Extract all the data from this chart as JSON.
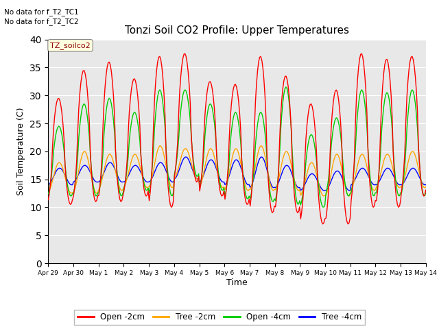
{
  "title": "Tonzi Soil CO2 Profile: Upper Temperatures",
  "xlabel": "Time",
  "ylabel": "Soil Temperature (C)",
  "annotations": [
    "No data for f_T2_TC1",
    "No data for f_T2_TC2"
  ],
  "box_label": "TZ_soilco2",
  "ylim": [
    0,
    40
  ],
  "yticks": [
    0,
    5,
    10,
    15,
    20,
    25,
    30,
    35,
    40
  ],
  "colors": {
    "open_2cm": "#FF0000",
    "tree_2cm": "#FFA500",
    "open_4cm": "#00CC00",
    "tree_4cm": "#0000FF"
  },
  "legend": [
    "Open -2cm",
    "Tree -2cm",
    "Open -4cm",
    "Tree -4cm"
  ],
  "bg_color": "#E8E8E8",
  "fig_color": "#FFFFFF",
  "x_tick_labels": [
    "Apr 29",
    "Apr 30",
    "May 1",
    "May 2",
    "May 3",
    "May 4",
    "May 5",
    "May 6",
    "May 7",
    "May 8",
    "May 9",
    "May 10",
    "May 11",
    "May 12",
    "May 13",
    "May 14"
  ],
  "red_peaks": [
    29.5,
    34.5,
    36.0,
    33.0,
    37.0,
    37.5,
    32.5,
    32.0,
    37.0,
    33.5,
    28.5,
    31.0,
    37.5,
    36.5,
    37.0
  ],
  "red_troughs": [
    10.5,
    11.0,
    11.0,
    12.0,
    10.0,
    14.5,
    12.0,
    10.5,
    9.0,
    9.0,
    7.0,
    7.0,
    10.0,
    10.0,
    12.0
  ],
  "green_peaks": [
    24.5,
    28.5,
    29.5,
    27.0,
    31.0,
    31.0,
    28.5,
    27.0,
    27.0,
    31.5,
    23.0,
    26.0,
    31.0,
    30.5,
    31.0
  ],
  "green_troughs": [
    12.0,
    12.0,
    12.0,
    13.0,
    12.0,
    15.5,
    13.0,
    11.5,
    11.0,
    10.5,
    10.0,
    12.0,
    12.0,
    12.0,
    12.0
  ],
  "orange_peaks": [
    18.0,
    20.0,
    19.5,
    19.5,
    21.0,
    20.5,
    20.5,
    20.5,
    21.0,
    20.0,
    18.0,
    19.5,
    19.5,
    19.5,
    20.0
  ],
  "orange_troughs": [
    12.5,
    12.5,
    13.0,
    13.5,
    13.5,
    15.0,
    13.5,
    13.0,
    13.0,
    13.0,
    12.0,
    12.0,
    13.0,
    13.5,
    13.5
  ],
  "blue_peaks": [
    17.0,
    17.5,
    18.0,
    17.5,
    18.0,
    19.0,
    18.5,
    18.5,
    19.0,
    17.5,
    16.0,
    16.5,
    17.0,
    17.0,
    17.0
  ],
  "blue_troughs": [
    14.0,
    14.5,
    14.5,
    14.5,
    14.5,
    15.0,
    14.5,
    14.0,
    13.5,
    13.5,
    13.0,
    13.0,
    14.0,
    14.0,
    14.0
  ]
}
